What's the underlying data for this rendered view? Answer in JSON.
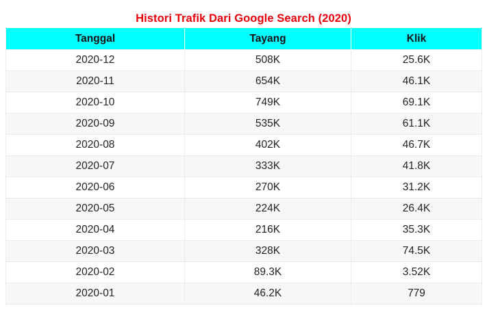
{
  "title": "Histori Trafik Dari Google Search (2020)",
  "colors": {
    "title": "#e8000b",
    "header_bg": "#00ffff",
    "row_alt": "#f7f7f7",
    "border": "#ececec"
  },
  "table": {
    "headers": [
      "Tanggal",
      "Tayang",
      "Klik"
    ],
    "rows": [
      [
        "2020-12",
        "508K",
        "25.6K"
      ],
      [
        "2020-11",
        "654K",
        "46.1K"
      ],
      [
        "2020-10",
        "749K",
        "69.1K"
      ],
      [
        "2020-09",
        "535K",
        "61.1K"
      ],
      [
        "2020-08",
        "402K",
        "46.7K"
      ],
      [
        "2020-07",
        "333K",
        "41.8K"
      ],
      [
        "2020-06",
        "270K",
        "31.2K"
      ],
      [
        "2020-05",
        "224K",
        "26.4K"
      ],
      [
        "2020-04",
        "216K",
        "35.3K"
      ],
      [
        "2020-03",
        "328K",
        "74.5K"
      ],
      [
        "2020-02",
        "89.3K",
        "3.52K"
      ],
      [
        "2020-01",
        "46.2K",
        "779"
      ]
    ]
  }
}
